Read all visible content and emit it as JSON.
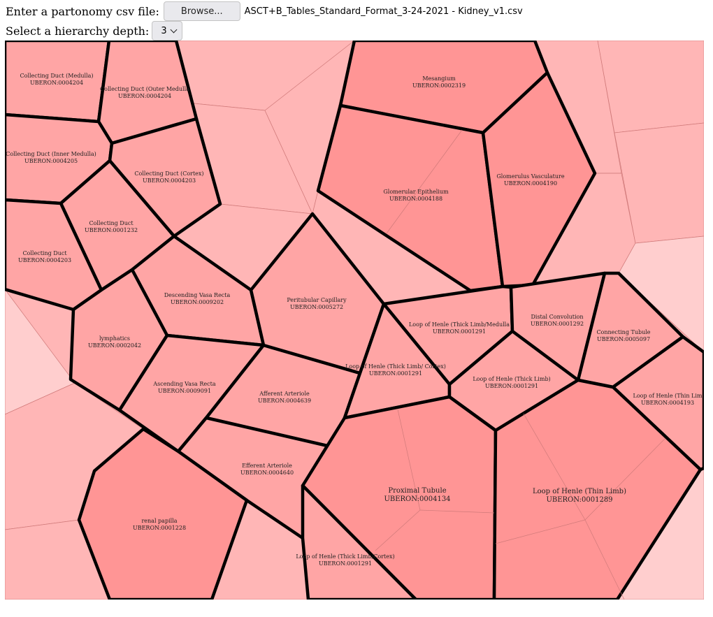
{
  "file_input": {
    "label": "Enter a partonomy csv file:",
    "button_label": "Browse...",
    "file_name": "ASCT+B_Tables_Standard_Format_3-24-2021 - Kidney_v1.csv"
  },
  "depth_select": {
    "label": "Select a hierarchy depth:",
    "value": "3"
  },
  "cells": [
    {
      "name": "Collecting Duct (Medulla)",
      "id": "UBERON:0004204"
    },
    {
      "name": "Collecting Duct (Outer Medulla",
      "id": "UBERON:0004204"
    },
    {
      "name": "Collecting Duct (Inner Medulla)",
      "id": "UBERON:0004205"
    },
    {
      "name": "Collecting Duct (Cortex)",
      "id": "UBERON:0004203"
    },
    {
      "name": "Collecting Duct",
      "id": "UBERON:0001232"
    },
    {
      "name": "Collecting Duct",
      "id": "UBERON:0004203"
    },
    {
      "name": "Descending Vasa Recta",
      "id": "UBERON:0009202"
    },
    {
      "name": "lymphatics",
      "id": "UBERON:0002042"
    },
    {
      "name": "Ascending Vasa Recta",
      "id": "UBERON:0009091"
    },
    {
      "name": "Afferent Arteriole",
      "id": "UBERON:0004639"
    },
    {
      "name": "Efferent Arteriole",
      "id": "UBERON:0004640"
    },
    {
      "name": "renal papilla",
      "id": "UBERON:0001228"
    },
    {
      "name": "Peritubular Capillary",
      "id": "UBERON:0005272"
    },
    {
      "name": "Mesangium",
      "id": "UBERON:0002319"
    },
    {
      "name": "Glomerular Epithelium",
      "id": "UBERON:0004188"
    },
    {
      "name": "Glomerulus Vasculature",
      "id": "UBERON:0004190"
    },
    {
      "name": "Loop of Henle (Thick Limb/Medulla",
      "id": "UBERON:0001291"
    },
    {
      "name": "Distal Convolution",
      "id": "UBERON:0001292"
    },
    {
      "name": "Connecting Tubule",
      "id": "UBERON:0005097"
    },
    {
      "name": "Loop of Henle (Thick Limb/ Cortex)",
      "id": "UBERON:0001291"
    },
    {
      "name": "Loop of Henle (Thick Limb)",
      "id": "UBERON:0001291"
    },
    {
      "name": "Loop of Henle (Thin Lim",
      "id": "UBERON:0004193"
    },
    {
      "name": "Proximal Tubule",
      "id": "UBERON:0004134"
    },
    {
      "name": "Loop of Henle (Thin Limb)",
      "id": "UBERON:0001289"
    },
    {
      "name": "Loop of Henle (Thick Limb/Cortex)",
      "id": "UBERON:0001291"
    }
  ],
  "colors": {
    "background_cell": "#ffb6b6",
    "light_cell": "#ffcece",
    "mid_cell": "#ffa5a5",
    "dark_cell": "#ff9595"
  }
}
